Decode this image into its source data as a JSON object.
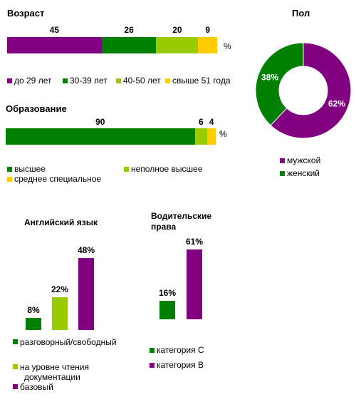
{
  "colors": {
    "purple": "#800080",
    "green": "#008000",
    "lightgreen": "#99CC00",
    "yellow": "#FFCC00"
  },
  "chart_data": [
    {
      "id": "age",
      "type": "bar",
      "orientation": "horizontal-stacked",
      "title": "Возраст",
      "unit": "%",
      "series": [
        {
          "name": "до 29 лет",
          "value": 45,
          "label": "45",
          "color": "#800080"
        },
        {
          "name": "30-39 лет",
          "value": 26,
          "label": "26",
          "color": "#008000"
        },
        {
          "name": "40-50  лет",
          "value": 20,
          "label": "20",
          "color": "#99CC00"
        },
        {
          "name": "свыше 51 года",
          "value": 9,
          "label": "9",
          "color": "#FFCC00"
        }
      ]
    },
    {
      "id": "education",
      "type": "bar",
      "orientation": "horizontal-stacked",
      "title": "Образование",
      "unit": "%",
      "series": [
        {
          "name": "высшее",
          "value": 90,
          "label": "90",
          "color": "#008000"
        },
        {
          "name": "неполное высшее",
          "value": 6,
          "label": "6",
          "color": "#99CC00"
        },
        {
          "name": "среднее специальное",
          "value": 4,
          "label": "4",
          "color": "#FFCC00"
        }
      ]
    },
    {
      "id": "gender",
      "type": "pie",
      "donut": true,
      "title": "Пол",
      "slices": [
        {
          "name": "мужской",
          "value": 62,
          "label": "62%",
          "color": "#800080"
        },
        {
          "name": "женский",
          "value": 38,
          "label": "38%",
          "color": "#008000"
        }
      ]
    },
    {
      "id": "english",
      "type": "bar",
      "title": "Английский язык",
      "categories": [
        "разговорный/свободный",
        "на уровне чтения документации",
        "базовый"
      ],
      "legend_lines": [
        [
          "разговорный/свободный"
        ],
        [
          "на уровне чтения",
          "документации"
        ],
        [
          "базовый"
        ]
      ],
      "values": [
        8,
        22,
        48
      ],
      "labels": [
        "8%",
        "22%",
        "48%"
      ],
      "colors": [
        "#008000",
        "#99CC00",
        "#800080"
      ]
    },
    {
      "id": "license",
      "type": "bar",
      "title_lines": [
        "Водительские",
        "права"
      ],
      "categories": [
        "категория С",
        "категория В"
      ],
      "values": [
        16,
        61
      ],
      "labels": [
        "16%",
        "61%"
      ],
      "colors": [
        "#008000",
        "#800080"
      ]
    }
  ]
}
